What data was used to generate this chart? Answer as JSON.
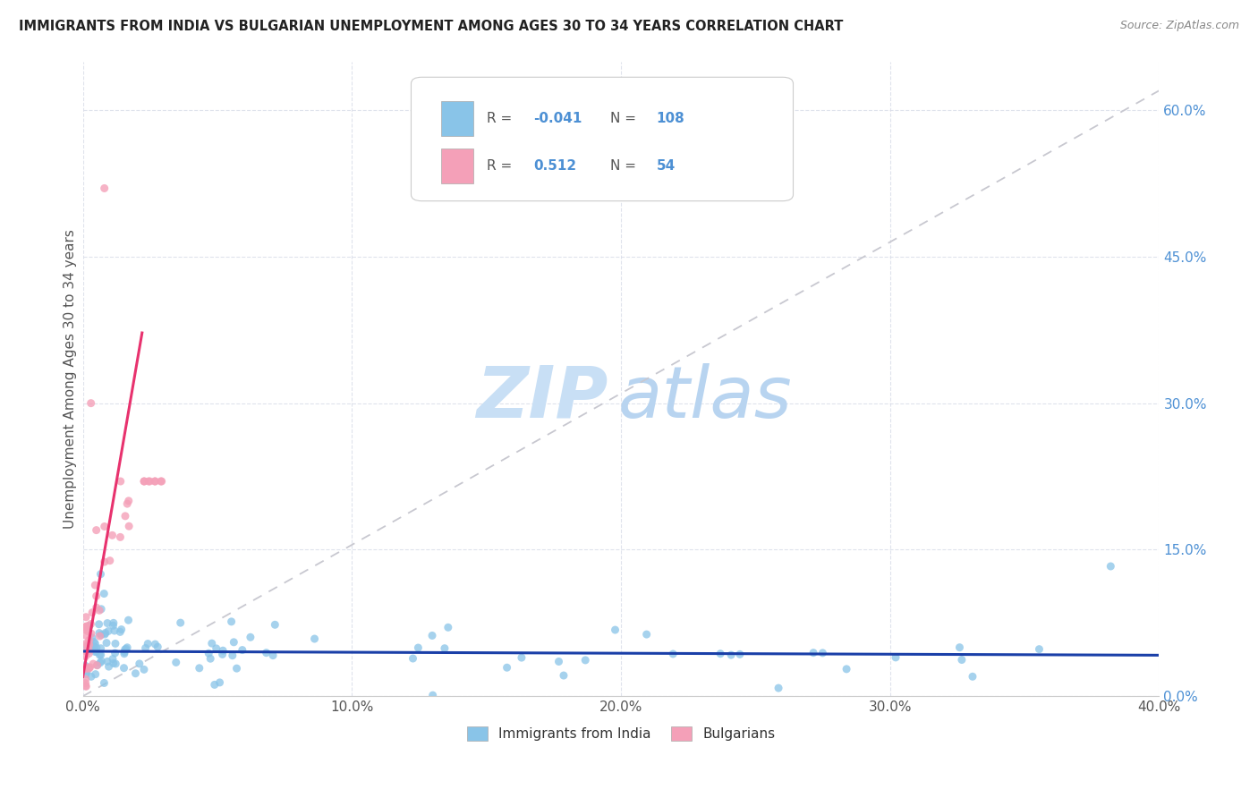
{
  "title": "IMMIGRANTS FROM INDIA VS BULGARIAN UNEMPLOYMENT AMONG AGES 30 TO 34 YEARS CORRELATION CHART",
  "source": "Source: ZipAtlas.com",
  "ylabel": "Unemployment Among Ages 30 to 34 years",
  "xlim": [
    0.0,
    0.4
  ],
  "ylim": [
    0.0,
    0.65
  ],
  "legend_label1": "Immigrants from India",
  "legend_label2": "Bulgarians",
  "R1": "-0.041",
  "N1": "108",
  "R2": "0.512",
  "N2": "54",
  "color_blue": "#89C4E8",
  "color_pink": "#F4A0B8",
  "trendline_india_color": "#1a3fa8",
  "trendline_bulg_color": "#e8326e",
  "trendline_dashed_color": "#c8c8d0",
  "watermark_color": "#ddeeff",
  "background_color": "#ffffff",
  "xtick_color": "#555555",
  "ytick_color": "#4d90d4",
  "ylabel_color": "#555555",
  "grid_color": "#d8dce8",
  "title_color": "#222222",
  "source_color": "#888888",
  "legend_text_color": "#555555",
  "legend_value_color": "#4d90d4"
}
